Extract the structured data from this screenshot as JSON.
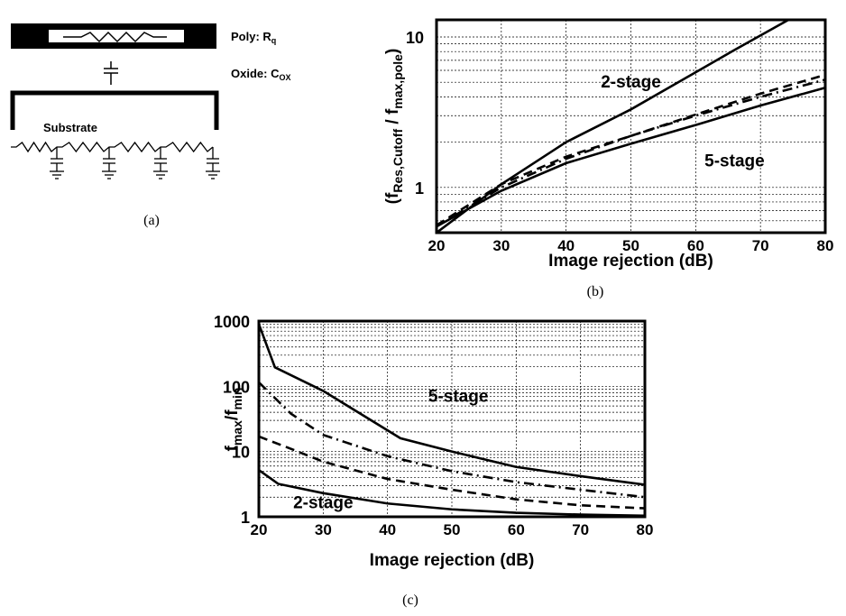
{
  "panel_a": {
    "poly_label": "Poly: R",
    "poly_sub": "q",
    "oxide_label": "Oxide: C",
    "oxide_sub": "OX",
    "substrate_label": "Substrate",
    "caption": "(a)"
  },
  "chart_data": [
    {
      "id": "b",
      "type": "line",
      "caption": "(b)",
      "xlabel": "Image rejection (dB)",
      "ylabel_main": "(f",
      "ylabel_sub1": "Res,Cutoff",
      "ylabel_mid": " / f",
      "ylabel_sub2": "max,pole",
      "ylabel_end": ")",
      "xlim": [
        20,
        80
      ],
      "ylim": [
        0.5,
        13
      ],
      "yscale": "log",
      "grid": true,
      "xticks": [
        20,
        30,
        40,
        50,
        60,
        70,
        80
      ],
      "yticks": [
        1,
        10
      ],
      "annotations": [
        {
          "text": "2-stage",
          "x": 50,
          "y": 5.0
        },
        {
          "text": "5-stage",
          "x": 66,
          "y": 1.5
        }
      ],
      "series": [
        {
          "style": "solid",
          "x": [
            20,
            30,
            40,
            50,
            58,
            66,
            75
          ],
          "y": [
            0.5,
            1.05,
            2.0,
            3.3,
            5.2,
            8.2,
            13.5
          ]
        },
        {
          "style": "dashdot",
          "x": [
            20,
            30,
            40,
            50,
            60,
            70,
            80
          ],
          "y": [
            0.55,
            1.0,
            1.55,
            2.2,
            3.0,
            4.0,
            5.2
          ]
        },
        {
          "style": "dashed",
          "x": [
            20,
            30,
            40,
            50,
            60,
            70,
            80
          ],
          "y": [
            0.56,
            1.05,
            1.6,
            2.2,
            3.05,
            4.2,
            5.6
          ]
        },
        {
          "style": "solid",
          "x": [
            20,
            30,
            40,
            50,
            60,
            70,
            80
          ],
          "y": [
            0.55,
            0.95,
            1.45,
            1.95,
            2.6,
            3.5,
            4.6
          ]
        }
      ]
    },
    {
      "id": "c",
      "type": "line",
      "caption": "(c)",
      "xlabel": "Image rejection (dB)",
      "ylabel_main": "f",
      "ylabel_sub1": "max",
      "ylabel_mid": "/f",
      "ylabel_sub2": "min",
      "ylabel_end": "",
      "xlim": [
        20,
        80
      ],
      "ylim": [
        1,
        1000
      ],
      "yscale": "log",
      "grid": true,
      "xticks": [
        20,
        30,
        40,
        50,
        60,
        70,
        80
      ],
      "yticks": [
        1,
        10,
        100,
        1000
      ],
      "yticklabels": [
        "1",
        "10",
        "100",
        "1000"
      ],
      "annotations": [
        {
          "text": "5-stage",
          "x": 51,
          "y": 70
        },
        {
          "text": "2-stage",
          "x": 30,
          "y": 1.65
        }
      ],
      "series": [
        {
          "style": "solid",
          "x": [
            20,
            22.5,
            30,
            42,
            50,
            60,
            70,
            80
          ],
          "y": [
            900,
            195,
            85,
            16,
            10,
            5.8,
            4.2,
            3.1
          ]
        },
        {
          "style": "dashdot",
          "x": [
            20,
            25,
            30,
            40,
            50,
            60,
            70,
            80
          ],
          "y": [
            115,
            38,
            18,
            8.5,
            5.0,
            3.4,
            2.6,
            2.0
          ]
        },
        {
          "style": "dashed",
          "x": [
            20,
            25,
            30,
            40,
            50,
            60,
            70,
            80
          ],
          "y": [
            17,
            11,
            7.0,
            3.8,
            2.6,
            1.85,
            1.5,
            1.35
          ]
        },
        {
          "style": "solid",
          "x": [
            20,
            23,
            30,
            40,
            50,
            60,
            70,
            80
          ],
          "y": [
            5.2,
            3.2,
            2.3,
            1.6,
            1.3,
            1.15,
            1.08,
            1.04
          ]
        }
      ]
    }
  ]
}
